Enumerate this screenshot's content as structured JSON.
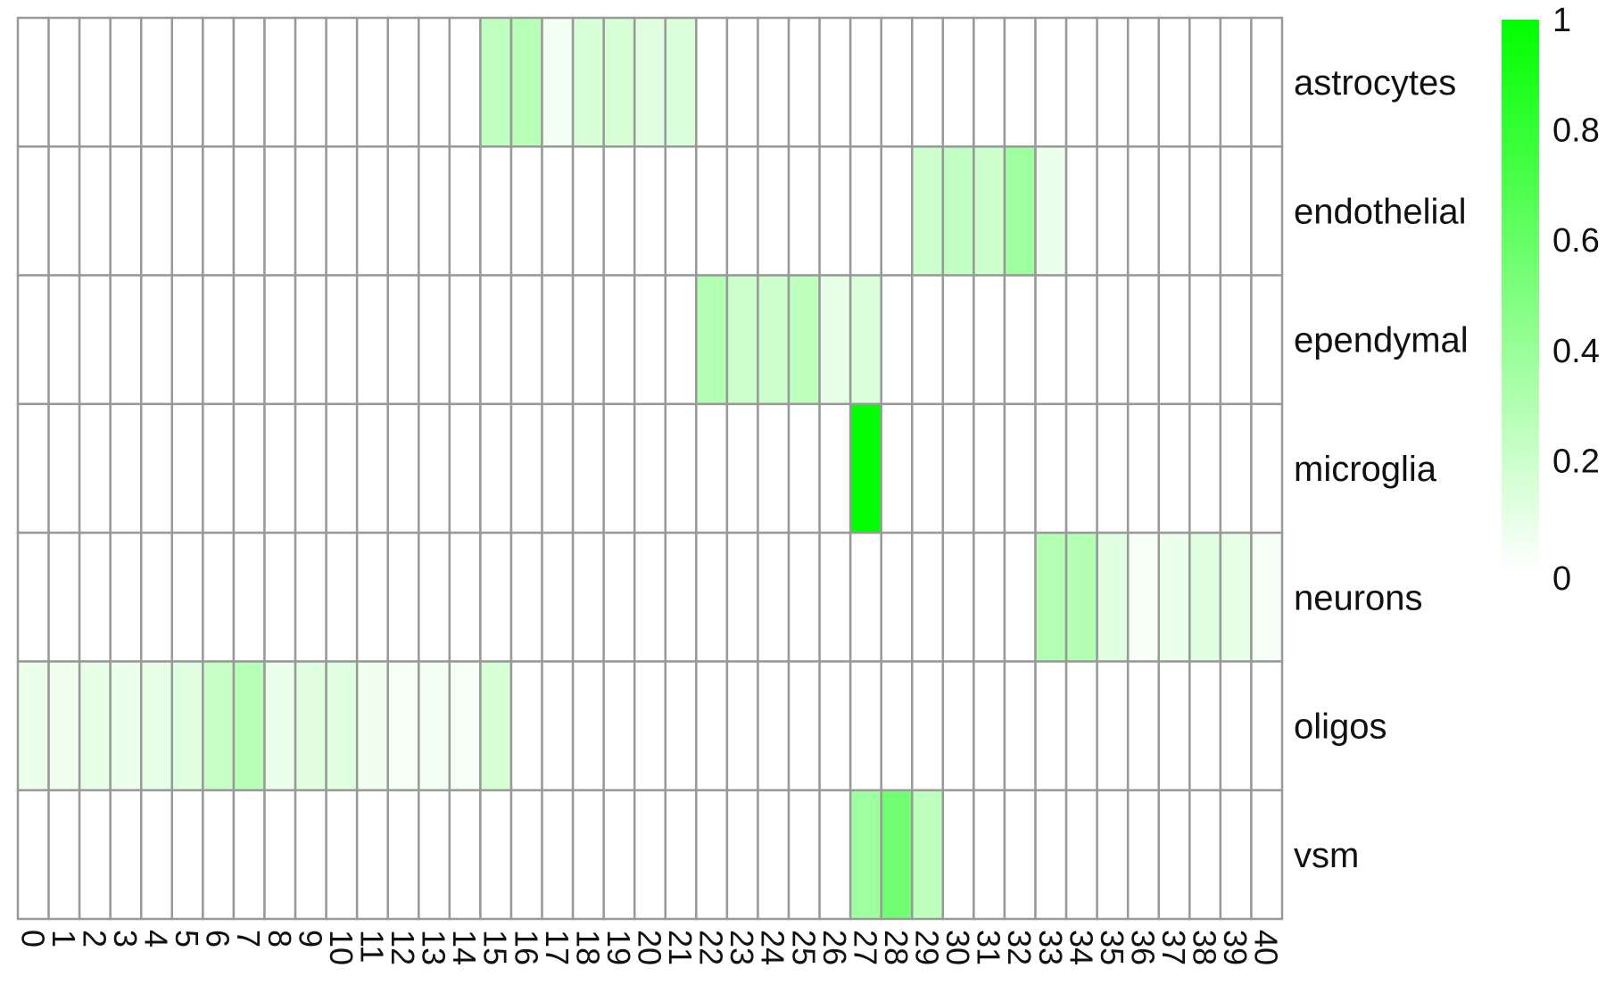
{
  "chart_data": {
    "type": "heatmap",
    "title": "",
    "xlabel": "",
    "ylabel": "",
    "color_low": "#ffffff",
    "color_high": "#00ff00",
    "cell_border_color": "#999999",
    "legend_placement": "right",
    "value_range": [
      0,
      1
    ],
    "legend_ticks": [
      "0",
      "0.2",
      "0.4",
      "0.6",
      "0.8",
      "1"
    ],
    "legend_tick_values": [
      0,
      0.2,
      0.4,
      0.6,
      0.8,
      1
    ],
    "columns": [
      "0",
      "1",
      "2",
      "3",
      "4",
      "5",
      "6",
      "7",
      "8",
      "9",
      "10",
      "11",
      "12",
      "13",
      "14",
      "15",
      "16",
      "17",
      "18",
      "19",
      "20",
      "21",
      "22",
      "23",
      "24",
      "25",
      "26",
      "27",
      "28",
      "29",
      "30",
      "31",
      "32",
      "33",
      "34",
      "35",
      "36",
      "37",
      "38",
      "39",
      "40"
    ],
    "rows": [
      "astrocytes",
      "endothelial",
      "ependymal",
      "microglia",
      "neurons",
      "oligos",
      "vsm"
    ],
    "values": [
      [
        0,
        0,
        0,
        0,
        0,
        0,
        0,
        0,
        0,
        0,
        0,
        0,
        0,
        0,
        0,
        0.25,
        0.28,
        0.05,
        0.16,
        0.16,
        0.12,
        0.14,
        0,
        0,
        0,
        0,
        0,
        0,
        0,
        0,
        0,
        0,
        0,
        0,
        0,
        0,
        0,
        0,
        0,
        0,
        0
      ],
      [
        0,
        0,
        0,
        0,
        0,
        0,
        0,
        0,
        0,
        0,
        0,
        0,
        0,
        0,
        0,
        0,
        0,
        0,
        0,
        0,
        0,
        0,
        0,
        0,
        0,
        0,
        0,
        0,
        0,
        0.2,
        0.24,
        0.2,
        0.38,
        0.08,
        0,
        0,
        0,
        0,
        0,
        0,
        0
      ],
      [
        0,
        0,
        0,
        0,
        0,
        0,
        0,
        0,
        0,
        0,
        0,
        0,
        0,
        0,
        0,
        0,
        0,
        0,
        0,
        0,
        0,
        0,
        0.3,
        0.2,
        0.2,
        0.26,
        0.1,
        0.14,
        0,
        0,
        0,
        0,
        0,
        0,
        0,
        0,
        0,
        0,
        0,
        0,
        0
      ],
      [
        0,
        0,
        0,
        0,
        0,
        0,
        0,
        0,
        0,
        0,
        0,
        0,
        0,
        0,
        0,
        0,
        0,
        0,
        0,
        0,
        0,
        0,
        0,
        0,
        0,
        0,
        0,
        1,
        0,
        0,
        0,
        0,
        0,
        0,
        0,
        0,
        0,
        0,
        0,
        0,
        0
      ],
      [
        0,
        0,
        0,
        0,
        0,
        0,
        0,
        0,
        0,
        0,
        0,
        0,
        0,
        0,
        0,
        0,
        0,
        0,
        0,
        0,
        0,
        0,
        0,
        0,
        0,
        0,
        0,
        0,
        0,
        0,
        0,
        0,
        0,
        0.3,
        0.3,
        0.12,
        0.03,
        0.08,
        0.12,
        0.1,
        0.04
      ],
      [
        0.08,
        0.06,
        0.1,
        0.08,
        0.1,
        0.12,
        0.22,
        0.28,
        0.08,
        0.12,
        0.12,
        0.06,
        0.04,
        0.05,
        0.04,
        0.16,
        0,
        0,
        0,
        0,
        0,
        0,
        0,
        0,
        0,
        0,
        0,
        0,
        0,
        0,
        0,
        0,
        0,
        0,
        0,
        0,
        0,
        0,
        0,
        0,
        0
      ],
      [
        0,
        0,
        0,
        0,
        0,
        0,
        0,
        0,
        0,
        0,
        0,
        0,
        0,
        0,
        0,
        0,
        0,
        0,
        0,
        0,
        0,
        0,
        0,
        0,
        0,
        0,
        0,
        0.38,
        0.55,
        0.26,
        0,
        0,
        0,
        0,
        0,
        0,
        0,
        0,
        0,
        0,
        0
      ]
    ]
  }
}
